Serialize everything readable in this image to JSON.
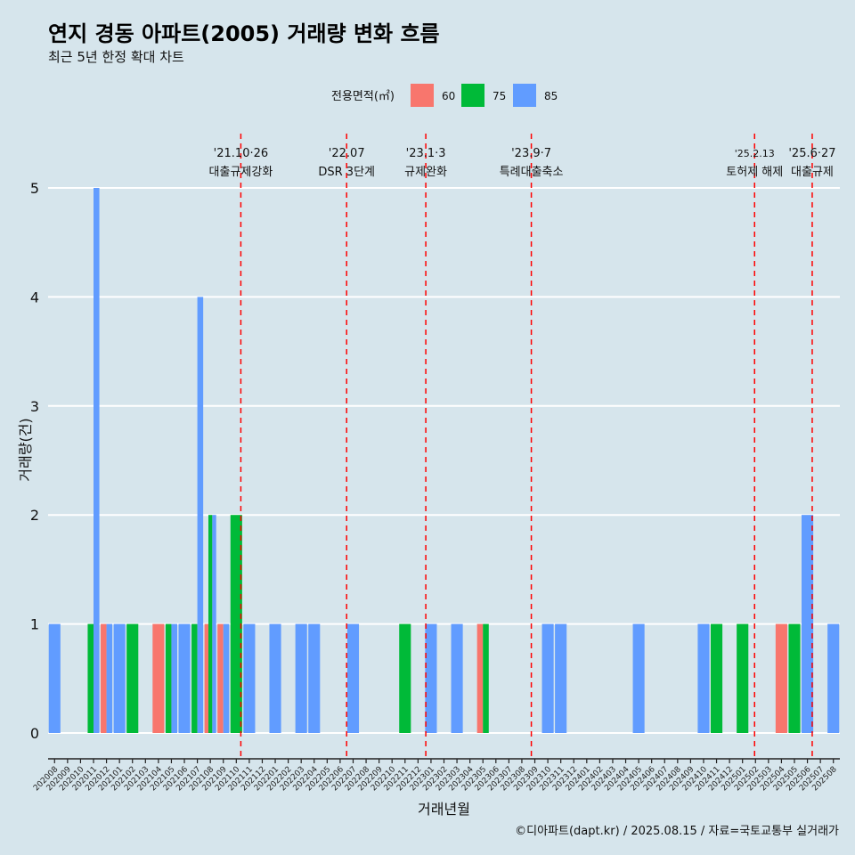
{
  "title": "연지 경동 아파트(2005) 거래량 변화 흐름",
  "subtitle": "최근 5년 한정 확대 차트",
  "caption": "©디아파트(dapt.kr) / 2025.08.15 / 자료=국토교통부 실거래가",
  "colors": {
    "background": "#d6e5ec",
    "60": "#f8766d",
    "75": "#00ba38",
    "85": "#619cff",
    "event_line": "#ff0000",
    "grid": "#ffffff"
  },
  "chart_data": {
    "type": "bar",
    "title": "연지 경동 아파트(2005) 거래량 변화 흐름",
    "subtitle": "최근 5년 한정 확대 차트",
    "xlabel": "거래년월",
    "ylabel": "거래량(건)",
    "ylim": [
      0,
      5
    ],
    "yticks": [
      0,
      1,
      2,
      3,
      4,
      5
    ],
    "grid": true,
    "legend": {
      "title": "전용면적(㎡)",
      "position": "top",
      "entries": [
        "60",
        "75",
        "85"
      ]
    },
    "categories": [
      "202008",
      "202009",
      "202010",
      "202011",
      "202012",
      "202101",
      "202102",
      "202103",
      "202104",
      "202105",
      "202106",
      "202107",
      "202108",
      "202109",
      "202110",
      "202111",
      "202112",
      "202201",
      "202202",
      "202203",
      "202204",
      "202205",
      "202206",
      "202207",
      "202208",
      "202209",
      "202210",
      "202211",
      "202212",
      "202301",
      "202302",
      "202303",
      "202304",
      "202305",
      "202306",
      "202307",
      "202308",
      "202309",
      "202310",
      "202311",
      "202312",
      "202401",
      "202402",
      "202403",
      "202404",
      "202405",
      "202406",
      "202407",
      "202408",
      "202409",
      "202410",
      "202411",
      "202412",
      "202501",
      "202502",
      "202503",
      "202504",
      "202505",
      "202506",
      "202507",
      "202508"
    ],
    "series": [
      {
        "name": "60",
        "values": [
          0,
          0,
          0,
          0,
          1,
          0,
          0,
          0,
          1,
          0,
          0,
          0,
          1,
          1,
          0,
          0,
          0,
          0,
          0,
          0,
          0,
          0,
          0,
          0,
          0,
          0,
          0,
          0,
          0,
          0,
          0,
          0,
          0,
          1,
          0,
          0,
          0,
          0,
          0,
          0,
          0,
          0,
          0,
          0,
          0,
          0,
          0,
          0,
          0,
          0,
          0,
          0,
          0,
          0,
          0,
          0,
          1,
          0,
          0,
          0,
          0
        ]
      },
      {
        "name": "75",
        "values": [
          0,
          0,
          0,
          1,
          0,
          0,
          1,
          0,
          0,
          1,
          0,
          1,
          2,
          0,
          2,
          0,
          0,
          0,
          0,
          0,
          0,
          0,
          0,
          0,
          0,
          0,
          0,
          1,
          0,
          0,
          0,
          0,
          0,
          1,
          0,
          0,
          0,
          0,
          0,
          0,
          0,
          0,
          0,
          0,
          0,
          0,
          0,
          0,
          0,
          0,
          0,
          1,
          0,
          1,
          0,
          0,
          0,
          1,
          0,
          0,
          0
        ]
      },
      {
        "name": "85",
        "values": [
          1,
          0,
          0,
          5,
          1,
          1,
          0,
          0,
          0,
          1,
          1,
          4,
          2,
          1,
          0,
          1,
          0,
          1,
          0,
          1,
          1,
          0,
          0,
          1,
          0,
          0,
          0,
          0,
          0,
          1,
          0,
          1,
          0,
          0,
          0,
          0,
          0,
          0,
          1,
          1,
          0,
          0,
          0,
          0,
          0,
          1,
          0,
          0,
          0,
          0,
          1,
          0,
          0,
          0,
          0,
          0,
          0,
          0,
          2,
          0,
          1
        ]
      }
    ],
    "events": [
      {
        "x": 202110.85,
        "date": "'21.10·26",
        "label": "대출규제강화"
      },
      {
        "x": 202207,
        "date": "'22.07",
        "label": "DSR 3단계"
      },
      {
        "x": 202301.1,
        "date": "'23.1·3",
        "label": "규제완화"
      },
      {
        "x": 202309.23,
        "date": "'23.9·7",
        "label": "특례대출축소"
      },
      {
        "x": 202502.43,
        "date": "'25.2.13",
        "label": "토허제 해제"
      },
      {
        "x": 202506.87,
        "date": "'25.6·27",
        "label": "대출규제"
      }
    ]
  }
}
